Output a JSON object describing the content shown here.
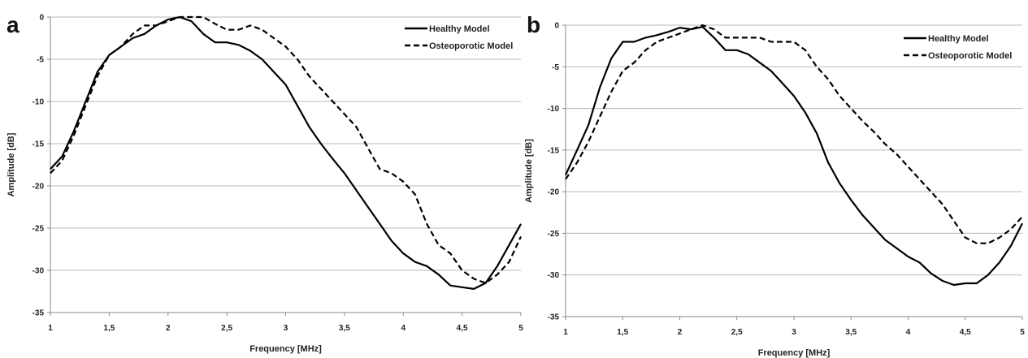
{
  "chart_data": [
    {
      "panel_label": "a",
      "type": "line",
      "xlabel": "Frequency [MHz]",
      "ylabel": "Amplitude [dB]",
      "xlim": [
        1,
        5
      ],
      "ylim": [
        -35,
        0
      ],
      "xticks": [
        1,
        1.5,
        2,
        2.5,
        3,
        3.5,
        4,
        4.5,
        5
      ],
      "xtick_labels": [
        "1",
        "1,5",
        "2",
        "2,5",
        "3",
        "3,5",
        "4",
        "4,5",
        "5"
      ],
      "yticks": [
        0,
        -5,
        -10,
        -15,
        -20,
        -25,
        -30,
        -35
      ],
      "ytick_labels": [
        "0",
        "-5",
        "-10",
        "-15",
        "-20",
        "-25",
        "-30",
        "-35"
      ],
      "grid": "horizontal",
      "legend_position": "top-right",
      "series": [
        {
          "name": "Healthy Model",
          "style": "solid",
          "color": "#000000",
          "x": [
            1.0,
            1.1,
            1.2,
            1.3,
            1.4,
            1.5,
            1.6,
            1.7,
            1.8,
            1.9,
            2.0,
            2.1,
            2.2,
            2.3,
            2.4,
            2.5,
            2.6,
            2.7,
            2.8,
            2.9,
            3.0,
            3.1,
            3.2,
            3.3,
            3.4,
            3.5,
            3.6,
            3.7,
            3.8,
            3.9,
            4.0,
            4.1,
            4.2,
            4.3,
            4.4,
            4.5,
            4.6,
            4.7,
            4.8,
            4.9,
            5.0
          ],
          "y": [
            -18,
            -16.5,
            -13.5,
            -10,
            -6.5,
            -4.5,
            -3.5,
            -2.5,
            -2,
            -1,
            -0.3,
            0,
            -0.5,
            -2,
            -3,
            -3,
            -3.3,
            -4,
            -5,
            -6.5,
            -8,
            -10.5,
            -13,
            -15,
            -16.8,
            -18.5,
            -20.5,
            -22.5,
            -24.5,
            -26.5,
            -28,
            -29,
            -29.5,
            -30.5,
            -31.8,
            -32,
            -32.2,
            -31.5,
            -29.5,
            -27,
            -24.5
          ]
        },
        {
          "name": "Osteoporotic Model",
          "style": "dashed",
          "color": "#000000",
          "x": [
            1.0,
            1.1,
            1.2,
            1.3,
            1.4,
            1.5,
            1.6,
            1.7,
            1.8,
            1.9,
            2.0,
            2.1,
            2.2,
            2.3,
            2.4,
            2.5,
            2.6,
            2.7,
            2.8,
            2.9,
            3.0,
            3.1,
            3.2,
            3.3,
            3.4,
            3.5,
            3.6,
            3.7,
            3.8,
            3.9,
            4.0,
            4.1,
            4.2,
            4.3,
            4.4,
            4.5,
            4.6,
            4.7,
            4.8,
            4.9,
            5.0
          ],
          "y": [
            -18.5,
            -17,
            -14,
            -10.5,
            -7,
            -4.5,
            -3.5,
            -2,
            -1,
            -1,
            -0.5,
            0,
            0,
            0,
            -0.8,
            -1.5,
            -1.5,
            -1,
            -1.5,
            -2.5,
            -3.5,
            -5,
            -7,
            -8.5,
            -10,
            -11.5,
            -13,
            -15.5,
            -18,
            -18.5,
            -19.5,
            -21,
            -24.5,
            -27,
            -28,
            -30,
            -31,
            -31.5,
            -30.5,
            -29,
            -26
          ]
        }
      ]
    },
    {
      "panel_label": "b",
      "type": "line",
      "xlabel": "Frequency [MHz]",
      "ylabel": "Amplitude [dB]",
      "xlim": [
        1,
        5
      ],
      "ylim": [
        -35,
        0
      ],
      "xticks": [
        1,
        1.5,
        2,
        2.5,
        3,
        3.5,
        4,
        4.5,
        5
      ],
      "xtick_labels": [
        "1",
        "1,5",
        "2",
        "2,5",
        "3",
        "3,5",
        "4",
        "4,5",
        "5"
      ],
      "yticks": [
        0,
        -5,
        -10,
        -15,
        -20,
        -25,
        -30,
        -35
      ],
      "ytick_labels": [
        "0",
        "-5",
        "-10",
        "-15",
        "-20",
        "-25",
        "-30",
        "-35"
      ],
      "grid": "horizontal",
      "legend_position": "top-right",
      "series": [
        {
          "name": "Healthy Model",
          "style": "solid",
          "color": "#000000",
          "x": [
            1.0,
            1.1,
            1.2,
            1.3,
            1.4,
            1.5,
            1.6,
            1.7,
            1.8,
            1.9,
            2.0,
            2.1,
            2.2,
            2.3,
            2.4,
            2.5,
            2.6,
            2.7,
            2.8,
            2.9,
            3.0,
            3.1,
            3.2,
            3.3,
            3.4,
            3.5,
            3.6,
            3.7,
            3.8,
            3.9,
            4.0,
            4.1,
            4.2,
            4.3,
            4.4,
            4.5,
            4.6,
            4.7,
            4.8,
            4.9,
            5.0
          ],
          "y": [
            -18,
            -15,
            -12,
            -7.5,
            -4,
            -2,
            -2,
            -1.5,
            -1.2,
            -0.8,
            -0.3,
            -0.5,
            -0.2,
            -1.5,
            -3,
            -3,
            -3.5,
            -4.5,
            -5.5,
            -7,
            -8.5,
            -10.5,
            -13,
            -16.5,
            -19,
            -21,
            -22.8,
            -24.3,
            -25.8,
            -26.8,
            -27.8,
            -28.5,
            -29.8,
            -30.7,
            -31.2,
            -31,
            -31,
            -30,
            -28.5,
            -26.5,
            -23.8
          ]
        },
        {
          "name": "Osteoporotic Model",
          "style": "dashed",
          "color": "#000000",
          "x": [
            1.0,
            1.1,
            1.2,
            1.3,
            1.4,
            1.5,
            1.6,
            1.7,
            1.8,
            1.9,
            2.0,
            2.1,
            2.2,
            2.3,
            2.4,
            2.5,
            2.6,
            2.7,
            2.8,
            2.9,
            3.0,
            3.1,
            3.2,
            3.3,
            3.4,
            3.5,
            3.6,
            3.7,
            3.8,
            3.9,
            4.0,
            4.1,
            4.2,
            4.3,
            4.4,
            4.5,
            4.6,
            4.7,
            4.8,
            4.9,
            5.0
          ],
          "y": [
            -18.5,
            -16.5,
            -14,
            -11,
            -8,
            -5.5,
            -4.5,
            -3,
            -2,
            -1.5,
            -1,
            -0.5,
            0,
            -0.5,
            -1.5,
            -1.5,
            -1.5,
            -1.5,
            -2,
            -2,
            -2,
            -3,
            -5,
            -6.5,
            -8.5,
            -10,
            -11.5,
            -12.8,
            -14.3,
            -15.5,
            -17,
            -18.5,
            -20,
            -21.5,
            -23.5,
            -25.5,
            -26.2,
            -26.2,
            -25.5,
            -24.5,
            -23
          ]
        }
      ]
    }
  ]
}
